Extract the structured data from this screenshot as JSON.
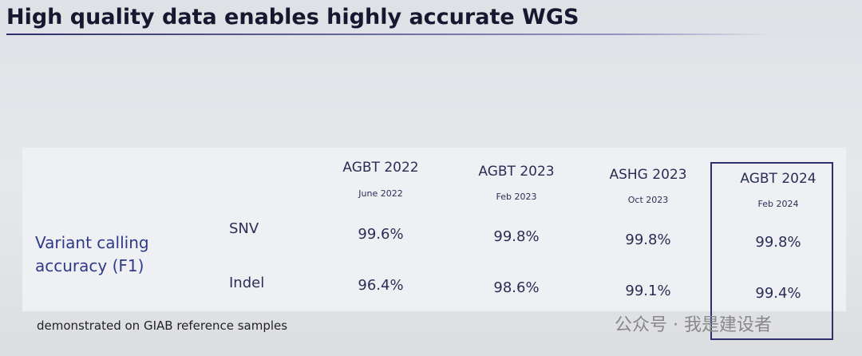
{
  "header": {
    "title": "High quality data enables highly accurate WGS"
  },
  "table": {
    "columns": [
      {
        "event": "AGBT 2022",
        "date": "June 2022"
      },
      {
        "event": "AGBT 2023",
        "date": "Feb 2023"
      },
      {
        "event": "ASHG 2023",
        "date": "Oct 2023"
      },
      {
        "event": "AGBT 2024",
        "date": "Feb 2024"
      }
    ],
    "group_label": "Variant calling accuracy (F1)",
    "rows": [
      {
        "label": "SNV",
        "values": [
          "99.6%",
          "99.8%",
          "99.8%",
          "99.8%"
        ]
      },
      {
        "label": "Indel",
        "values": [
          "96.4%",
          "98.6%",
          "99.1%",
          "99.4%"
        ]
      }
    ]
  },
  "footnote": "demonstrated on GIAB reference samples",
  "watermark": "公众号 · 我是建设者"
}
